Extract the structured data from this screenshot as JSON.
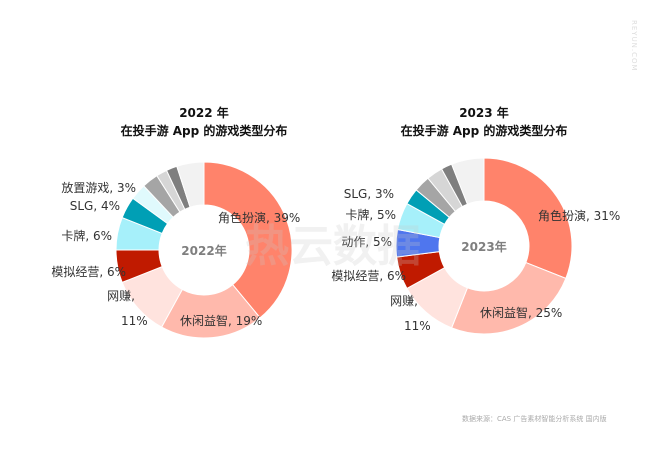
{
  "watermark": "热云数据",
  "watermark_side": "REYUN.COM",
  "source": "数据来源：CAS 广告素材智能分析系统 国内版",
  "chart_data": [
    {
      "type": "pie",
      "title": [
        "2022 年",
        "在投手游 App 的游戏类型分布"
      ],
      "center_label": "2022年",
      "slices": [
        {
          "name": "角色扮演",
          "value": 39,
          "label": "角色扮演, 39%",
          "color": "#FF836B"
        },
        {
          "name": "休闲益智",
          "value": 19,
          "label": "休闲益智, 19%",
          "color": "#FFB9AC"
        },
        {
          "name": "网赚",
          "value": 11,
          "label": "网赚,",
          "label2": "11%",
          "color": "#FFE3DE"
        },
        {
          "name": "模拟经营",
          "value": 6,
          "label": "模拟经营, 6%",
          "color": "#C01A00"
        },
        {
          "name": "卡牌",
          "value": 6,
          "label": "卡牌, 6%",
          "color": "#A6F0FA"
        },
        {
          "name": "SLG",
          "value": 4,
          "label": "SLG, 4%",
          "color": "#009FB5"
        },
        {
          "name": "放置游戏",
          "value": 3,
          "label": "放置游戏, 3%",
          "color": "#E0FAFD"
        },
        {
          "name": "",
          "value": 3,
          "label": "",
          "color": "#A5A5A5"
        },
        {
          "name": "",
          "value": 2,
          "label": "",
          "color": "#D6D6D6"
        },
        {
          "name": "",
          "value": 2,
          "label": "",
          "color": "#7F7F7F"
        },
        {
          "name": "",
          "value": 5,
          "label": "",
          "color": "#F2F2F2"
        }
      ]
    },
    {
      "type": "pie",
      "title": [
        "2023 年",
        "在投手游 App 的游戏类型分布"
      ],
      "center_label": "2023年",
      "slices": [
        {
          "name": "角色扮演",
          "value": 31,
          "label": "角色扮演, 31%",
          "color": "#FF836B"
        },
        {
          "name": "休闲益智",
          "value": 25,
          "label": "休闲益智, 25%",
          "color": "#FFB9AC"
        },
        {
          "name": "网赚",
          "value": 11,
          "label": "网赚,",
          "label2": "11%",
          "color": "#FFE3DE"
        },
        {
          "name": "模拟经营",
          "value": 6,
          "label": "模拟经营, 6%",
          "color": "#C01A00"
        },
        {
          "name": "动作",
          "value": 5,
          "label": "动作, 5%",
          "color": "#4F76EE"
        },
        {
          "name": "卡牌",
          "value": 5,
          "label": "卡牌, 5%",
          "color": "#A6F0FA"
        },
        {
          "name": "SLG",
          "value": 3,
          "label": "SLG, 3%",
          "color": "#009FB5"
        },
        {
          "name": "",
          "value": 3,
          "label": "",
          "color": "#A5A5A5"
        },
        {
          "name": "",
          "value": 3,
          "label": "",
          "color": "#D6D6D6"
        },
        {
          "name": "",
          "value": 2,
          "label": "",
          "color": "#7F7F7F"
        },
        {
          "name": "",
          "value": 6,
          "label": "",
          "color": "#F2F2F2"
        }
      ]
    }
  ]
}
